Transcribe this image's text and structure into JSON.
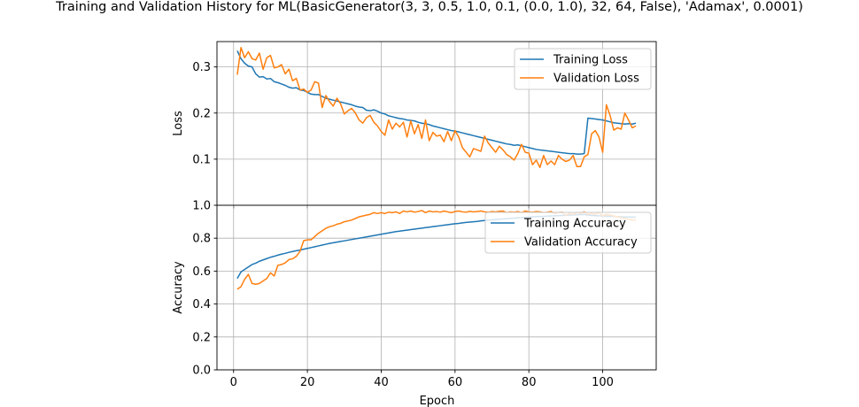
{
  "chart_data": [
    {
      "type": "line",
      "title": "Training and Validation History for ML(BasicGenerator(3, 3, 0.5, 1.0, 0.1, (0.0, 1.0), 32, 64, False), 'Adamax', 0.0001)",
      "xlabel": "",
      "ylabel": "Loss",
      "xlim": [
        -4.5,
        114.5
      ],
      "ylim": [
        0,
        0.355
      ],
      "yticks": [
        0.1,
        0.2,
        0.3
      ],
      "ytick_labels": [
        "0.1",
        "0.2",
        "0.3"
      ],
      "xticks": [
        0,
        20,
        40,
        60,
        80,
        100
      ],
      "grid": true,
      "legend": "upper right",
      "series": [
        {
          "name": "Training Loss",
          "color": "#1f77b4",
          "x_start": 1,
          "values": [
            0.335,
            0.318,
            0.308,
            0.302,
            0.3,
            0.285,
            0.278,
            0.279,
            0.274,
            0.275,
            0.268,
            0.266,
            0.263,
            0.26,
            0.256,
            0.254,
            0.255,
            0.25,
            0.249,
            0.245,
            0.241,
            0.24,
            0.24,
            0.236,
            0.232,
            0.23,
            0.228,
            0.226,
            0.224,
            0.222,
            0.22,
            0.218,
            0.215,
            0.213,
            0.212,
            0.206,
            0.205,
            0.207,
            0.204,
            0.2,
            0.198,
            0.194,
            0.192,
            0.19,
            0.188,
            0.187,
            0.185,
            0.184,
            0.183,
            0.18,
            0.178,
            0.177,
            0.175,
            0.172,
            0.17,
            0.168,
            0.166,
            0.164,
            0.162,
            0.161,
            0.159,
            0.157,
            0.155,
            0.153,
            0.151,
            0.149,
            0.147,
            0.145,
            0.143,
            0.141,
            0.139,
            0.137,
            0.135,
            0.133,
            0.132,
            0.13,
            0.131,
            0.129,
            0.127,
            0.125,
            0.123,
            0.121,
            0.12,
            0.119,
            0.118,
            0.117,
            0.116,
            0.115,
            0.114,
            0.113,
            0.112,
            0.112,
            0.111,
            0.111,
            0.112,
            0.189,
            0.188,
            0.187,
            0.186,
            0.185,
            0.183,
            0.181,
            0.179,
            0.178,
            0.177,
            0.176,
            0.177,
            0.176,
            0.178
          ]
        },
        {
          "name": "Validation Loss",
          "color": "#ff7f0e",
          "x_start": 1,
          "values": [
            0.283,
            0.342,
            0.32,
            0.333,
            0.318,
            0.315,
            0.33,
            0.295,
            0.32,
            0.325,
            0.298,
            0.3,
            0.305,
            0.285,
            0.295,
            0.27,
            0.275,
            0.25,
            0.252,
            0.245,
            0.25,
            0.268,
            0.265,
            0.212,
            0.238,
            0.225,
            0.215,
            0.232,
            0.22,
            0.198,
            0.205,
            0.21,
            0.2,
            0.185,
            0.178,
            0.19,
            0.195,
            0.18,
            0.172,
            0.16,
            0.152,
            0.185,
            0.165,
            0.178,
            0.17,
            0.18,
            0.148,
            0.183,
            0.155,
            0.175,
            0.145,
            0.185,
            0.14,
            0.158,
            0.15,
            0.152,
            0.138,
            0.16,
            0.14,
            0.162,
            0.148,
            0.125,
            0.115,
            0.105,
            0.123,
            0.12,
            0.117,
            0.15,
            0.135,
            0.125,
            0.115,
            0.128,
            0.12,
            0.11,
            0.105,
            0.098,
            0.112,
            0.132,
            0.115,
            0.113,
            0.088,
            0.098,
            0.082,
            0.108,
            0.088,
            0.096,
            0.088,
            0.108,
            0.1,
            0.095,
            0.098,
            0.108,
            0.084,
            0.084,
            0.105,
            0.11,
            0.155,
            0.162,
            0.148,
            0.115,
            0.218,
            0.195,
            0.163,
            0.168,
            0.165,
            0.2,
            0.185,
            0.168,
            0.172
          ]
        }
      ]
    },
    {
      "type": "line",
      "title": "",
      "xlabel": "Epoch",
      "ylabel": "Accuracy",
      "xlim": [
        -4.5,
        114.5
      ],
      "ylim": [
        0,
        1.0
      ],
      "yticks": [
        0.0,
        0.2,
        0.4,
        0.6,
        0.8,
        1.0
      ],
      "ytick_labels": [
        "0.0",
        "0.2",
        "0.4",
        "0.6",
        "0.8",
        "1.0"
      ],
      "xticks": [
        0,
        20,
        40,
        60,
        80,
        100
      ],
      "xtick_labels": [
        "0",
        "20",
        "40",
        "60",
        "80",
        "100"
      ],
      "grid": true,
      "legend": "upper right",
      "series": [
        {
          "name": "Training Accuracy",
          "color": "#1f77b4",
          "x_start": 1,
          "values": [
            0.555,
            0.595,
            0.61,
            0.625,
            0.64,
            0.648,
            0.66,
            0.668,
            0.676,
            0.684,
            0.69,
            0.697,
            0.703,
            0.708,
            0.714,
            0.719,
            0.724,
            0.728,
            0.733,
            0.738,
            0.743,
            0.748,
            0.753,
            0.758,
            0.763,
            0.768,
            0.772,
            0.776,
            0.78,
            0.784,
            0.788,
            0.792,
            0.796,
            0.8,
            0.804,
            0.808,
            0.812,
            0.816,
            0.82,
            0.824,
            0.828,
            0.832,
            0.836,
            0.84,
            0.843,
            0.846,
            0.849,
            0.852,
            0.855,
            0.858,
            0.861,
            0.864,
            0.867,
            0.87,
            0.873,
            0.876,
            0.879,
            0.882,
            0.885,
            0.888,
            0.89,
            0.893,
            0.896,
            0.898,
            0.9,
            0.902,
            0.905,
            0.907,
            0.909,
            0.911,
            0.913,
            0.915,
            0.917,
            0.919,
            0.92,
            0.922,
            0.924,
            0.925,
            0.927,
            0.928,
            0.93,
            0.931,
            0.932,
            0.933,
            0.934,
            0.935,
            0.936,
            0.937,
            0.938,
            0.939,
            0.94,
            0.941,
            0.942,
            0.943,
            0.944,
            0.94,
            0.938,
            0.937,
            0.936,
            0.935,
            0.934,
            0.933,
            0.932,
            0.931,
            0.93,
            0.929,
            0.929,
            0.928,
            0.928
          ]
        },
        {
          "name": "Validation Accuracy",
          "color": "#ff7f0e",
          "x_start": 1,
          "values": [
            0.49,
            0.505,
            0.55,
            0.58,
            0.525,
            0.52,
            0.525,
            0.54,
            0.555,
            0.59,
            0.57,
            0.635,
            0.64,
            0.65,
            0.67,
            0.675,
            0.69,
            0.72,
            0.785,
            0.79,
            0.79,
            0.81,
            0.83,
            0.845,
            0.86,
            0.87,
            0.875,
            0.885,
            0.89,
            0.9,
            0.905,
            0.91,
            0.92,
            0.93,
            0.935,
            0.94,
            0.945,
            0.955,
            0.95,
            0.955,
            0.95,
            0.958,
            0.955,
            0.96,
            0.95,
            0.965,
            0.96,
            0.965,
            0.958,
            0.962,
            0.968,
            0.955,
            0.965,
            0.96,
            0.962,
            0.958,
            0.965,
            0.96,
            0.955,
            0.962,
            0.965,
            0.96,
            0.958,
            0.963,
            0.96,
            0.962,
            0.965,
            0.96,
            0.958,
            0.962,
            0.96,
            0.963,
            0.965,
            0.955,
            0.96,
            0.958,
            0.962,
            0.955,
            0.965,
            0.96,
            0.958,
            0.962,
            0.96,
            0.955,
            0.958,
            0.962,
            0.95,
            0.955,
            0.958,
            0.94,
            0.95,
            0.945,
            0.955,
            0.95,
            0.96,
            0.945,
            0.95,
            0.945,
            0.955,
            0.935,
            0.945,
            0.94,
            0.935,
            0.93,
            0.925,
            0.92,
            0.915,
            0.912,
            0.91
          ]
        }
      ]
    }
  ]
}
